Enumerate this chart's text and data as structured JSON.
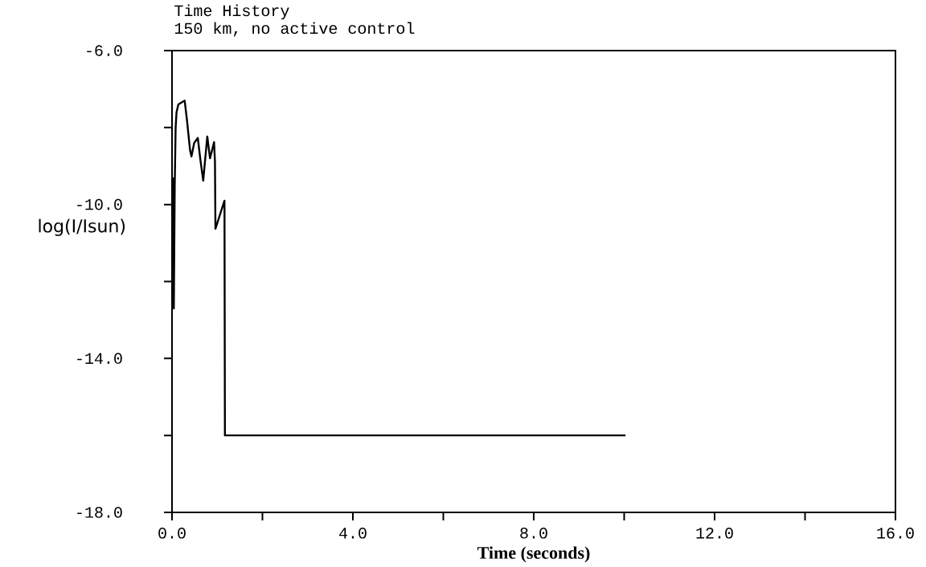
{
  "chart_data": {
    "type": "line",
    "title": "Time History",
    "subtitle": "150 km, no active control",
    "xlabel": "Time (seconds)",
    "ylabel": "log(I/Isun)",
    "x": [
      0.02,
      0.04,
      0.06,
      0.08,
      0.1,
      0.14,
      0.28,
      0.33,
      0.4,
      0.43,
      0.49,
      0.57,
      0.63,
      0.69,
      0.78,
      0.84,
      0.93,
      0.95,
      0.96,
      1.16,
      1.17,
      10.03
    ],
    "values": [
      -9.3,
      -12.7,
      -9.5,
      -8.0,
      -7.6,
      -7.4,
      -7.3,
      -7.8,
      -8.6,
      -8.75,
      -8.4,
      -8.27,
      -8.86,
      -9.38,
      -8.23,
      -8.8,
      -8.38,
      -8.9,
      -10.63,
      -9.9,
      -16.0,
      -16.0
    ],
    "color": "#000000",
    "xlim": [
      0,
      16
    ],
    "ylim": [
      -18,
      -6
    ],
    "xticks": [
      {
        "value": 0,
        "label": "0.0"
      },
      {
        "value": 2,
        "label": null
      },
      {
        "value": 4,
        "label": "4.0"
      },
      {
        "value": 6,
        "label": null
      },
      {
        "value": 8,
        "label": "8.0"
      },
      {
        "value": 10,
        "label": null
      },
      {
        "value": 12,
        "label": "12.0"
      },
      {
        "value": 14,
        "label": null
      },
      {
        "value": 16,
        "label": "16.0"
      }
    ],
    "yticks": [
      {
        "value": -18,
        "label": "-18.0"
      },
      {
        "value": -16,
        "label": null
      },
      {
        "value": -14,
        "label": "-14.0"
      },
      {
        "value": -12,
        "label": null
      },
      {
        "value": -10,
        "label": "-10.0"
      },
      {
        "value": -8,
        "label": null
      },
      {
        "value": -6,
        "label": "-6.0"
      }
    ],
    "grid": false,
    "marker": "none",
    "line_style": "solid"
  }
}
